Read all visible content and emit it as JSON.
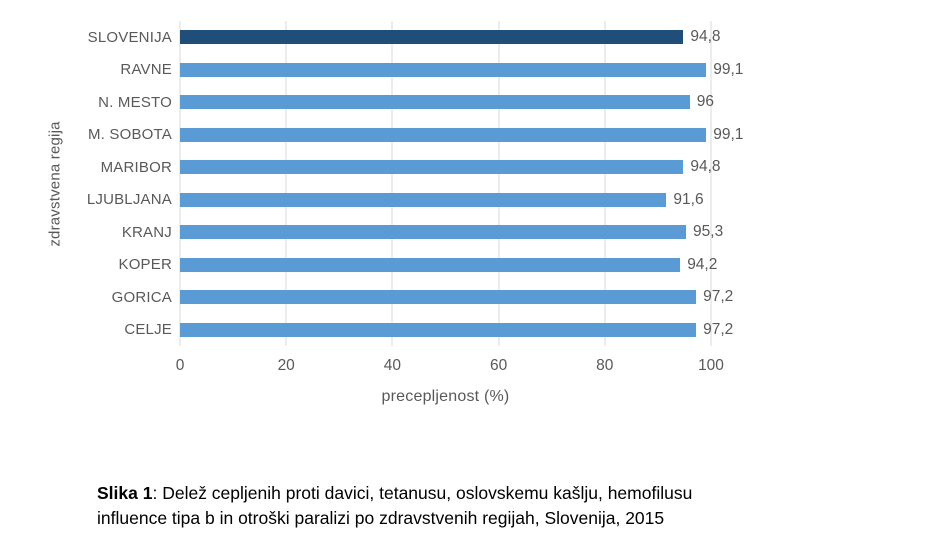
{
  "chart_data": {
    "type": "bar",
    "orientation": "horizontal",
    "title": "",
    "xlabel": "precepljenost (%)",
    "ylabel": "zdravstvena regija",
    "categories": [
      "SLOVENIJA",
      "RAVNE",
      "N. MESTO",
      "M. SOBOTA",
      "MARIBOR",
      "LJUBLJANA",
      "KRANJ",
      "KOPER",
      "GORICA",
      "CELJE"
    ],
    "values": [
      94.8,
      99.1,
      96,
      99.1,
      94.8,
      91.6,
      95.3,
      94.2,
      97.2,
      97.2
    ],
    "value_labels": [
      "94,8",
      "99,1",
      "96",
      "99,1",
      "94,8",
      "91,6",
      "95,3",
      "94,2",
      "97,2",
      "97,2"
    ],
    "highlight_index": 0,
    "xlim": [
      0,
      100
    ],
    "xticks": [
      0,
      20,
      40,
      60,
      80,
      100
    ],
    "grid": "vertical",
    "legend": "none",
    "colors": {
      "bar": "#5B9BD5",
      "highlight": "#1F4E79",
      "gridline": "#D9D9D9",
      "axis_text": "#595959"
    }
  },
  "caption": {
    "label": "Slika 1",
    "separator": ": ",
    "line1": "Delež cepljenih proti davici, tetanusu, oslovskemu kašlju, hemofilusu",
    "line2": "influence tipa b in otroški paralizi po zdravstvenih regijah, Slovenija, 2015"
  }
}
